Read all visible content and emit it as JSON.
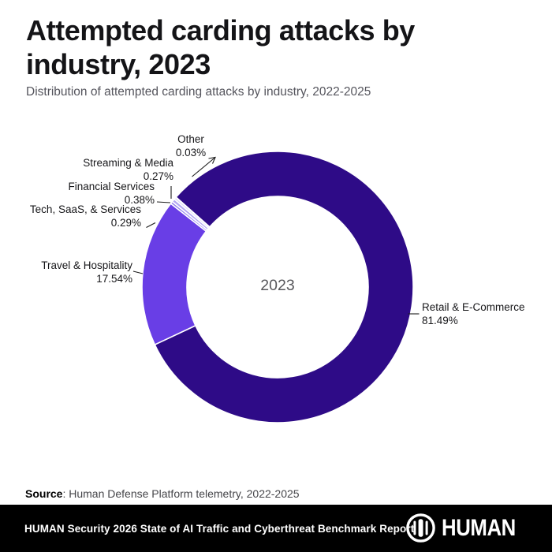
{
  "header": {
    "title": "Attempted carding attacks by industry, 2023",
    "subtitle": "Distribution of attempted carding attacks by industry, 2022-2025"
  },
  "chart_data": {
    "type": "pie",
    "subtype": "donut",
    "center_label": "2023",
    "unit": "%",
    "start_angle_clockwise_from_top_deg": 311.5,
    "slice_border_color": "#ffffff",
    "segments": [
      {
        "name": "Retail & E-Commerce",
        "value": 81.49,
        "pct_label": "81.49%",
        "color": "#2e0b87"
      },
      {
        "name": "Travel & Hospitality",
        "value": 17.54,
        "pct_label": "17.54%",
        "color": "#693ee6"
      },
      {
        "name": "Tech, SaaS, & Services",
        "value": 0.29,
        "pct_label": "0.29%",
        "color": "#8f7cee"
      },
      {
        "name": "Financial Services",
        "value": 0.38,
        "pct_label": "0.38%",
        "color": "#b4a8f3"
      },
      {
        "name": "Streaming & Media",
        "value": 0.27,
        "pct_label": "0.27%",
        "color": "#dcd7f9"
      },
      {
        "name": "Other",
        "value": 0.03,
        "pct_label": "0.03%",
        "color": "#f2effd"
      }
    ]
  },
  "footer": {
    "source_label": "Source",
    "source_text": ": Human Defense Platform telemetry, 2022-2025",
    "banner_text": "HUMAN Security 2026 State of AI Traffic and Cyberthreat Benchmark Report",
    "logo_text": "HUMAN"
  }
}
